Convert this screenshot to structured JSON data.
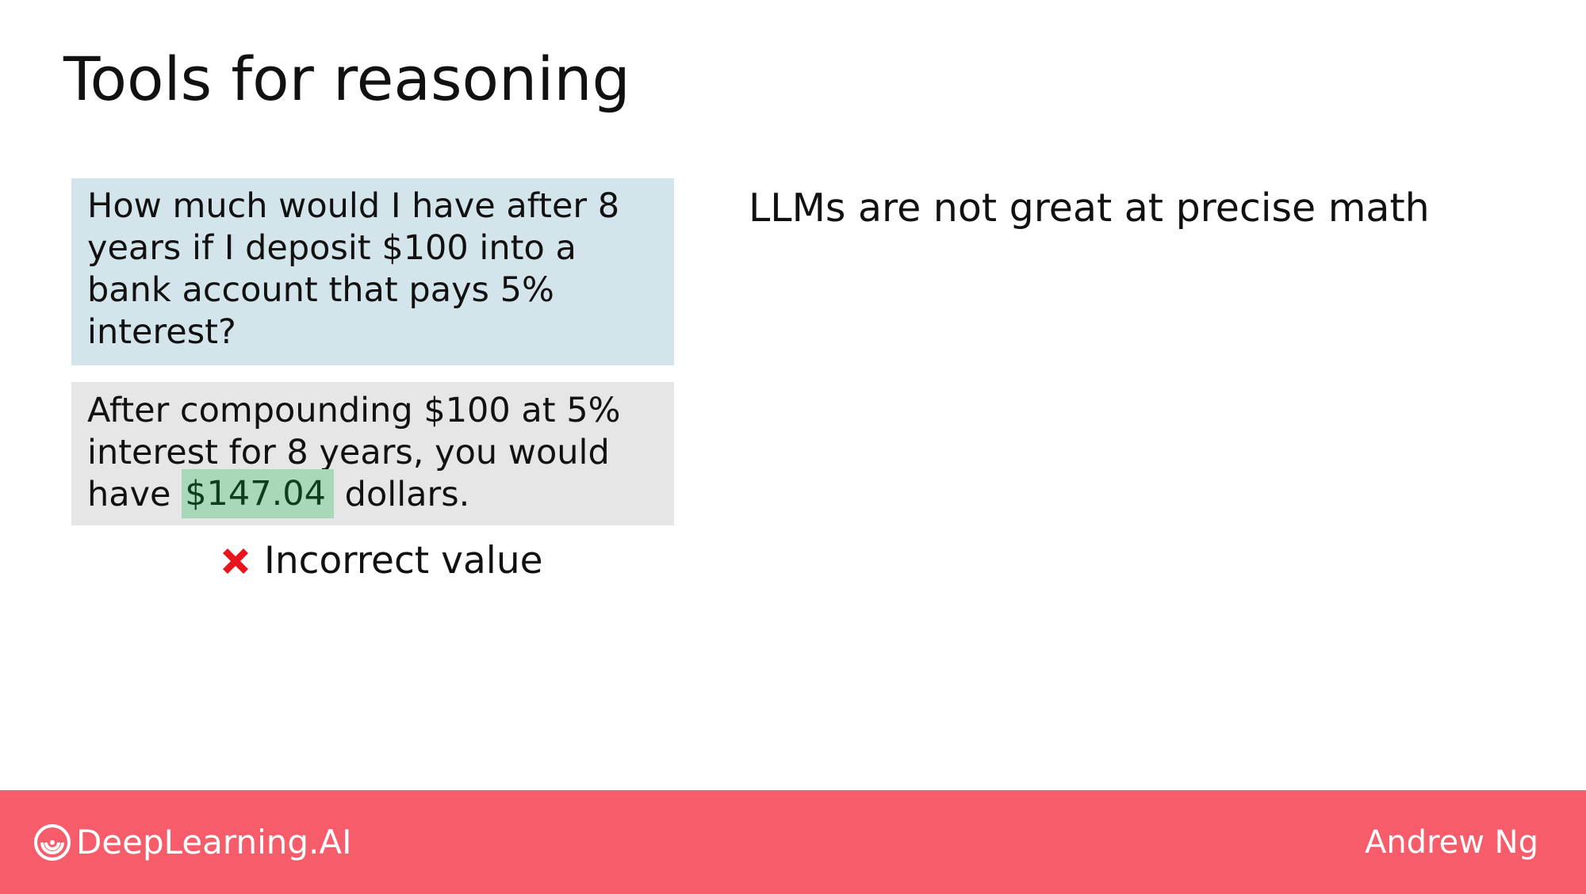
{
  "slide": {
    "title": "Tools for reasoning",
    "prompt": {
      "lines": [
        "How much would I have after 8",
        "years if I deposit $100 into a",
        "bank account that pays 5%",
        "interest?"
      ]
    },
    "response": {
      "line1": "After compounding  $100 at 5%",
      "line2": "interest for 8 years, you would",
      "line3_prefix": "have ",
      "line3_value": "$147.04",
      "line3_suffix": " dollars."
    },
    "verdict": {
      "icon": "cross-mark-icon",
      "text": "Incorrect value"
    },
    "side_note": "LLMs are not great at precise math"
  },
  "footer": {
    "logo_text": "DeepLearning.AI",
    "author": "Andrew Ng"
  },
  "colors": {
    "prompt_bg": "#d3e4ea",
    "response_bg": "#e6e6e6",
    "highlight_bg": "#a8d8b7",
    "cross_red": "#e8161c",
    "footer_bg": "#f65c69"
  }
}
